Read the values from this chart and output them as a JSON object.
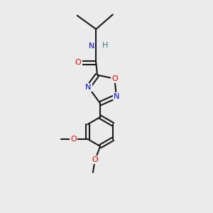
{
  "background_color": "#ebebeb",
  "bond_color": "#1a1a1a",
  "N_color": "#0000ff",
  "O_color": "#ff0000",
  "H_color": "#3a8080",
  "bond_width": 1.5,
  "figsize": [
    3.0,
    3.0
  ],
  "dpi": 100,
  "xlim": [
    0,
    10
  ],
  "ylim": [
    0,
    10
  ]
}
